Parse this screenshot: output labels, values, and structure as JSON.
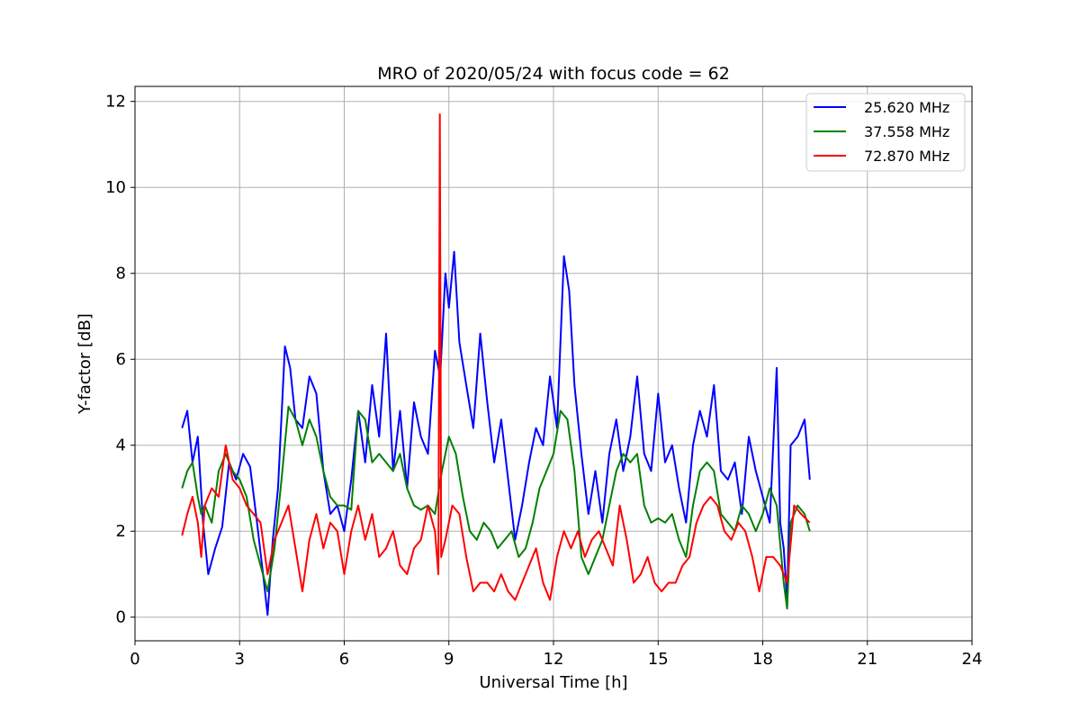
{
  "chart_data": {
    "type": "line",
    "title": "MRO of 2020/05/24 with focus code = 62",
    "xlabel": "Universal Time [h]",
    "ylabel": "Y-factor [dB]",
    "xlim": [
      0,
      24
    ],
    "ylim": [
      -0.55,
      12.35
    ],
    "xticks": [
      0,
      3,
      6,
      9,
      12,
      15,
      18,
      21,
      24
    ],
    "yticks": [
      0,
      2,
      4,
      6,
      8,
      10,
      12
    ],
    "grid": true,
    "legend_position": "top-right",
    "series": [
      {
        "name": "25.620 MHz",
        "color": "#0000ff",
        "x": [
          1.35,
          1.5,
          1.65,
          1.8,
          1.95,
          2.1,
          2.3,
          2.5,
          2.7,
          2.9,
          3.1,
          3.3,
          3.5,
          3.7,
          3.8,
          3.95,
          4.1,
          4.3,
          4.45,
          4.6,
          4.8,
          5.0,
          5.2,
          5.4,
          5.6,
          5.8,
          6.0,
          6.2,
          6.4,
          6.6,
          6.8,
          7.0,
          7.2,
          7.4,
          7.6,
          7.8,
          8.0,
          8.2,
          8.4,
          8.6,
          8.75,
          8.9,
          9.0,
          9.15,
          9.3,
          9.5,
          9.7,
          9.9,
          10.1,
          10.3,
          10.5,
          10.7,
          10.9,
          11.1,
          11.3,
          11.5,
          11.7,
          11.9,
          12.1,
          12.3,
          12.45,
          12.6,
          12.8,
          13.0,
          13.2,
          13.4,
          13.6,
          13.8,
          14.0,
          14.2,
          14.4,
          14.6,
          14.8,
          15.0,
          15.2,
          15.4,
          15.6,
          15.8,
          16.0,
          16.2,
          16.4,
          16.6,
          16.8,
          17.0,
          17.2,
          17.4,
          17.6,
          17.8,
          18.0,
          18.2,
          18.4,
          18.5,
          18.6,
          18.7,
          18.8,
          19.0,
          19.2,
          19.35
        ],
        "values": [
          4.4,
          4.8,
          3.6,
          4.2,
          2.2,
          1.0,
          1.6,
          2.1,
          3.6,
          3.2,
          3.8,
          3.5,
          2.2,
          0.8,
          0.05,
          1.8,
          3.0,
          6.3,
          5.8,
          4.6,
          4.4,
          5.6,
          5.2,
          3.4,
          2.4,
          2.6,
          2.0,
          3.2,
          4.8,
          3.6,
          5.4,
          4.2,
          6.6,
          3.4,
          4.8,
          3.0,
          5.0,
          4.2,
          3.8,
          6.2,
          5.6,
          8.0,
          7.2,
          8.5,
          6.4,
          5.4,
          4.4,
          6.6,
          5.0,
          3.6,
          4.6,
          3.2,
          1.8,
          2.6,
          3.6,
          4.4,
          4.0,
          5.6,
          4.4,
          8.4,
          7.6,
          5.4,
          3.8,
          2.4,
          3.4,
          2.2,
          3.8,
          4.6,
          3.4,
          4.2,
          5.6,
          3.8,
          3.4,
          5.2,
          3.6,
          4.0,
          3.0,
          2.2,
          4.0,
          4.8,
          4.2,
          5.4,
          3.4,
          3.2,
          3.6,
          2.4,
          4.2,
          3.4,
          2.8,
          2.2,
          5.8,
          2.2,
          1.6,
          0.4,
          4.0,
          4.2,
          4.6,
          3.2
        ]
      },
      {
        "name": "37.558 MHz",
        "color": "#008000",
        "x": [
          1.35,
          1.5,
          1.65,
          1.8,
          1.9,
          2.0,
          2.2,
          2.4,
          2.6,
          2.8,
          3.0,
          3.2,
          3.4,
          3.6,
          3.8,
          4.0,
          4.2,
          4.4,
          4.6,
          4.8,
          5.0,
          5.2,
          5.4,
          5.6,
          5.8,
          6.0,
          6.2,
          6.4,
          6.6,
          6.8,
          7.0,
          7.2,
          7.4,
          7.6,
          7.8,
          8.0,
          8.2,
          8.4,
          8.6,
          8.8,
          9.0,
          9.2,
          9.4,
          9.6,
          9.8,
          10.0,
          10.2,
          10.4,
          10.6,
          10.8,
          11.0,
          11.2,
          11.4,
          11.6,
          11.8,
          12.0,
          12.2,
          12.4,
          12.6,
          12.8,
          13.0,
          13.2,
          13.4,
          13.6,
          13.8,
          14.0,
          14.2,
          14.4,
          14.6,
          14.8,
          15.0,
          15.2,
          15.4,
          15.6,
          15.8,
          16.0,
          16.2,
          16.4,
          16.6,
          16.8,
          17.0,
          17.2,
          17.4,
          17.6,
          17.8,
          18.0,
          18.2,
          18.4,
          18.6,
          18.7,
          18.8,
          19.0,
          19.2,
          19.35
        ],
        "values": [
          3.0,
          3.4,
          3.6,
          2.8,
          2.4,
          2.6,
          2.2,
          3.4,
          3.8,
          3.4,
          3.2,
          2.8,
          1.8,
          1.2,
          0.6,
          1.6,
          3.2,
          4.9,
          4.6,
          4.0,
          4.6,
          4.2,
          3.4,
          2.8,
          2.6,
          2.6,
          2.5,
          4.8,
          4.6,
          3.6,
          3.8,
          3.6,
          3.4,
          3.8,
          3.0,
          2.6,
          2.5,
          2.6,
          2.4,
          3.4,
          4.2,
          3.8,
          2.8,
          2.0,
          1.8,
          2.2,
          2.0,
          1.6,
          1.8,
          2.0,
          1.4,
          1.6,
          2.2,
          3.0,
          3.4,
          3.8,
          4.8,
          4.6,
          3.4,
          1.4,
          1.0,
          1.4,
          1.8,
          2.6,
          3.4,
          3.8,
          3.6,
          3.8,
          2.6,
          2.2,
          2.3,
          2.2,
          2.4,
          1.8,
          1.4,
          2.6,
          3.4,
          3.6,
          3.4,
          2.4,
          2.2,
          2.0,
          2.6,
          2.4,
          2.0,
          2.4,
          3.0,
          2.6,
          0.8,
          0.2,
          2.2,
          2.6,
          2.4,
          2.0
        ]
      },
      {
        "name": "72.870 MHz",
        "color": "#ff0000",
        "x": [
          1.35,
          1.5,
          1.65,
          1.8,
          1.9,
          2.0,
          2.2,
          2.4,
          2.6,
          2.8,
          3.0,
          3.2,
          3.4,
          3.6,
          3.8,
          4.0,
          4.2,
          4.4,
          4.6,
          4.8,
          5.0,
          5.2,
          5.4,
          5.6,
          5.8,
          6.0,
          6.2,
          6.4,
          6.6,
          6.8,
          7.0,
          7.2,
          7.4,
          7.6,
          7.8,
          8.0,
          8.2,
          8.4,
          8.6,
          8.7,
          8.74,
          8.78,
          8.9,
          9.1,
          9.3,
          9.5,
          9.7,
          9.9,
          10.1,
          10.3,
          10.5,
          10.7,
          10.9,
          11.1,
          11.3,
          11.5,
          11.7,
          11.9,
          12.1,
          12.3,
          12.5,
          12.7,
          12.9,
          13.1,
          13.3,
          13.5,
          13.7,
          13.9,
          14.1,
          14.3,
          14.5,
          14.7,
          14.9,
          15.1,
          15.3,
          15.5,
          15.7,
          15.9,
          16.1,
          16.3,
          16.5,
          16.7,
          16.9,
          17.1,
          17.3,
          17.5,
          17.7,
          17.9,
          18.1,
          18.3,
          18.5,
          18.7,
          18.9,
          19.1,
          19.35
        ],
        "values": [
          1.9,
          2.4,
          2.8,
          2.2,
          1.4,
          2.6,
          3.0,
          2.8,
          4.0,
          3.2,
          3.0,
          2.6,
          2.4,
          2.2,
          1.0,
          1.8,
          2.2,
          2.6,
          1.6,
          0.6,
          1.8,
          2.4,
          1.6,
          2.2,
          2.0,
          1.0,
          2.0,
          2.6,
          1.8,
          2.4,
          1.4,
          1.6,
          2.0,
          1.2,
          1.0,
          1.6,
          1.8,
          2.6,
          2.0,
          1.0,
          11.7,
          1.4,
          1.8,
          2.6,
          2.4,
          1.4,
          0.6,
          0.8,
          0.8,
          0.6,
          1.0,
          0.6,
          0.4,
          0.8,
          1.2,
          1.6,
          0.8,
          0.4,
          1.4,
          2.0,
          1.6,
          2.0,
          1.4,
          1.8,
          2.0,
          1.6,
          1.2,
          2.6,
          1.8,
          0.8,
          1.0,
          1.4,
          0.8,
          0.6,
          0.8,
          0.8,
          1.2,
          1.4,
          2.2,
          2.6,
          2.8,
          2.6,
          2.0,
          1.8,
          2.2,
          2.0,
          1.4,
          0.6,
          1.4,
          1.4,
          1.2,
          0.8,
          2.6,
          2.4,
          2.2
        ]
      }
    ]
  }
}
